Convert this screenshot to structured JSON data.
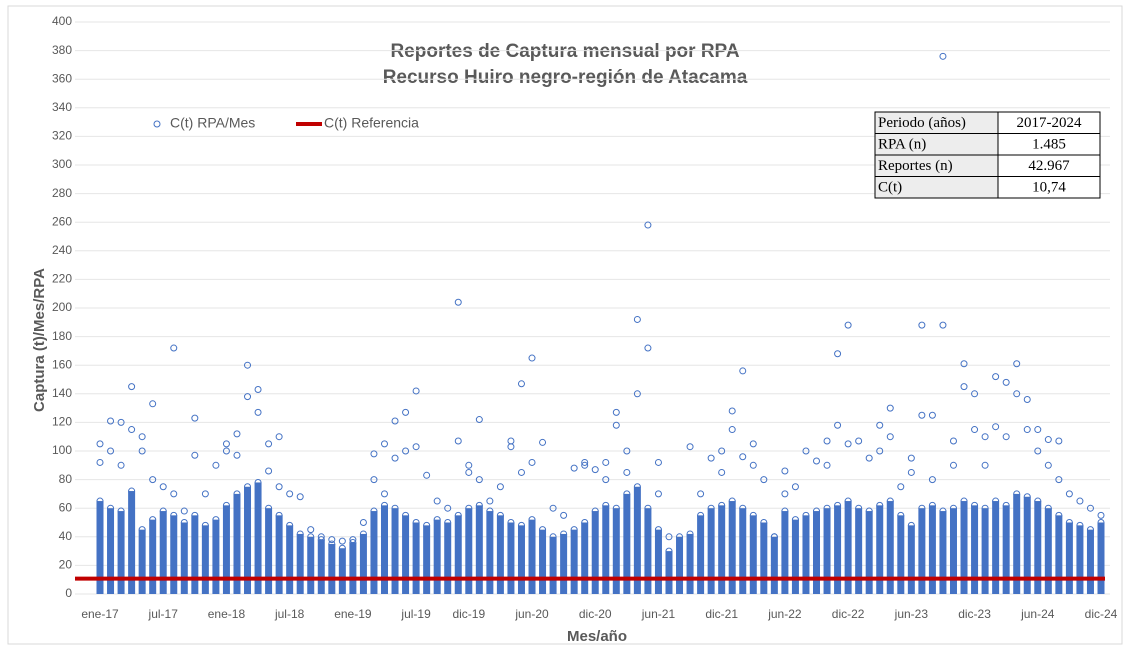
{
  "chart_data": {
    "type": "scatter",
    "title": "Reportes de Captura mensual por RPA",
    "subtitle": "Recurso Huiro negro-región de Atacama",
    "x_label": "Mes/año",
    "y_label": "Captura (t)/Mes/RPA",
    "ylim": [
      0,
      400
    ],
    "yticks": [
      0,
      20,
      40,
      60,
      80,
      100,
      120,
      140,
      160,
      180,
      200,
      220,
      240,
      260,
      280,
      300,
      320,
      340,
      360,
      380,
      400
    ],
    "categories": [
      "ene-17",
      null,
      null,
      null,
      null,
      null,
      "jul-17",
      null,
      null,
      null,
      null,
      null,
      "ene-18",
      null,
      null,
      null,
      null,
      null,
      "jul-18",
      null,
      null,
      null,
      null,
      null,
      "ene-19",
      null,
      null,
      null,
      null,
      null,
      "jul-19",
      null,
      null,
      null,
      null,
      "dic-19",
      null,
      null,
      null,
      null,
      null,
      "jun-20",
      null,
      null,
      null,
      null,
      null,
      "dic-20",
      null,
      null,
      null,
      null,
      null,
      "jun-21",
      null,
      null,
      null,
      null,
      null,
      "dic-21",
      null,
      null,
      null,
      null,
      null,
      "jun-22",
      null,
      null,
      null,
      null,
      null,
      "dic-22",
      null,
      null,
      null,
      null,
      null,
      "jun-23",
      null,
      null,
      null,
      null,
      null,
      "dic-23",
      null,
      null,
      null,
      null,
      null,
      "jun-24",
      null,
      null,
      null,
      null,
      null,
      "dic-24"
    ],
    "series": [
      {
        "name": "C(t) RPA/Mes",
        "color": "#4472c4",
        "dense_top": [
          65,
          60,
          58,
          72,
          45,
          52,
          58,
          55,
          50,
          55,
          48,
          52,
          62,
          70,
          75,
          78,
          60,
          55,
          48,
          42,
          40,
          38,
          35,
          32,
          36,
          42,
          58,
          62,
          60,
          55,
          50,
          48,
          52,
          50,
          55,
          60,
          62,
          58,
          55,
          50,
          48,
          52,
          45,
          40,
          42,
          45,
          50,
          58,
          62,
          60,
          70,
          75,
          60,
          45,
          30,
          40,
          42,
          55,
          60,
          62,
          65,
          60,
          55,
          50,
          40,
          58,
          52,
          55,
          58,
          60,
          62,
          65,
          60,
          58,
          62,
          65,
          55,
          48,
          60,
          62,
          58,
          60,
          65,
          62,
          60,
          65,
          62,
          70,
          68,
          65,
          60,
          55,
          50,
          48,
          45,
          50
        ],
        "outliers": [
          [
            105,
            92
          ],
          [
            121,
            100
          ],
          [
            120,
            90
          ],
          [
            145,
            115
          ],
          [
            110,
            100
          ],
          [
            133,
            80
          ],
          [
            75
          ],
          [
            172,
            70
          ],
          [
            58
          ],
          [
            123,
            97
          ],
          [
            70
          ],
          [
            90
          ],
          [
            105,
            100
          ],
          [
            112,
            97
          ],
          [
            160,
            138
          ],
          [
            143,
            127
          ],
          [
            105,
            86
          ],
          [
            110,
            75
          ],
          [
            70
          ],
          [
            68
          ],
          [
            45
          ],
          [
            40
          ],
          [
            38
          ],
          [
            37
          ],
          [
            38
          ],
          [
            50
          ],
          [
            98,
            80
          ],
          [
            105,
            70
          ],
          [
            121,
            95
          ],
          [
            127,
            100
          ],
          [
            142,
            103
          ],
          [
            83
          ],
          [
            65
          ],
          [
            60
          ],
          [
            107,
            204
          ],
          [
            90,
            85
          ],
          [
            122,
            80
          ],
          [
            65
          ],
          [
            75
          ],
          [
            107,
            103
          ],
          [
            147,
            85
          ],
          [
            165,
            92
          ],
          [
            106
          ],
          [
            60
          ],
          [
            55
          ],
          [
            88
          ],
          [
            92,
            90
          ],
          [
            87
          ],
          [
            92,
            80
          ],
          [
            127,
            118
          ],
          [
            100,
            85
          ],
          [
            192,
            140
          ],
          [
            258,
            172
          ],
          [
            92,
            70
          ],
          [
            40
          ],
          [
            20
          ],
          [
            103
          ],
          [
            70
          ],
          [
            95
          ],
          [
            100,
            85
          ],
          [
            128,
            115
          ],
          [
            156,
            96
          ],
          [
            105,
            90
          ],
          [
            80
          ],
          [
            40
          ],
          [
            86,
            70
          ],
          [
            75
          ],
          [
            100
          ],
          [
            93
          ],
          [
            107,
            90
          ],
          [
            168,
            118
          ],
          [
            188,
            105
          ],
          [
            107
          ],
          [
            95
          ],
          [
            100,
            118
          ],
          [
            130,
            110
          ],
          [
            75
          ],
          [
            95,
            85
          ],
          [
            188,
            125
          ],
          [
            125,
            80
          ],
          [
            376,
            188
          ],
          [
            107,
            90
          ],
          [
            161,
            145
          ],
          [
            140,
            115
          ],
          [
            110,
            90
          ],
          [
            152,
            117
          ],
          [
            148,
            110
          ],
          [
            161,
            140
          ],
          [
            136,
            115
          ],
          [
            115,
            100
          ],
          [
            108,
            90
          ],
          [
            107,
            80
          ],
          [
            70
          ],
          [
            65
          ],
          [
            60
          ],
          [
            55
          ]
        ]
      }
    ],
    "reference": {
      "name": "C(t) Referencia",
      "value": 10.74,
      "color": "#c00000"
    },
    "stats_table": [
      [
        "Periodo (años)",
        "2017-2024"
      ],
      [
        "RPA (n)",
        "1.485"
      ],
      [
        "Reportes (n)",
        "42.967"
      ],
      [
        "C(t)",
        "10,74"
      ]
    ]
  }
}
